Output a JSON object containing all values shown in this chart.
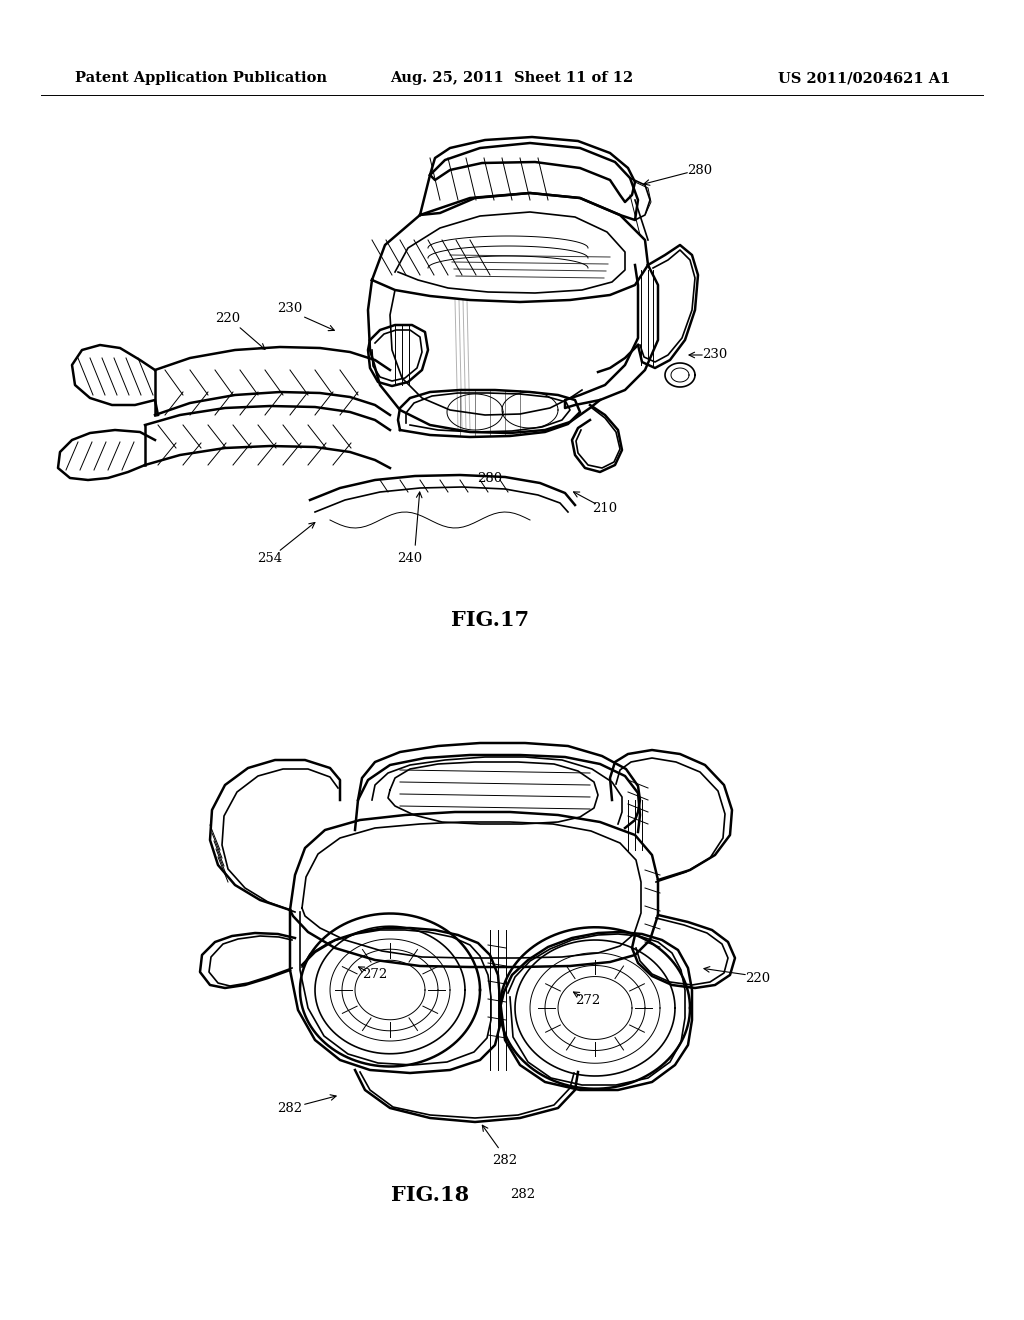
{
  "background_color": "#ffffff",
  "header_left": "Patent Application Publication",
  "header_center": "Aug. 25, 2011  Sheet 11 of 12",
  "header_right": "US 2011/0204621 A1",
  "line_color": "#000000",
  "fig17_label": "FIG.17",
  "fig18_label": "FIG.18",
  "ann_fontsize": 9.5,
  "label_fontsize": 15,
  "header_fontsize": 10.5
}
